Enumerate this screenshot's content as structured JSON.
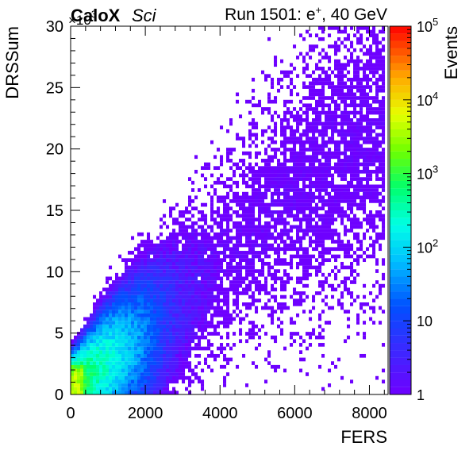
{
  "header": {
    "experiment": "CaloX",
    "tag": "Sci",
    "run_label": "Run 1501: e",
    "run_sup": "+",
    "run_energy": ", 40 GeV",
    "y_multiplier_base": "×10",
    "y_multiplier_exp": "3"
  },
  "chart_data": {
    "type": "heatmap",
    "xlabel": "FERS",
    "ylabel": "DRSSum",
    "zlabel": "Events",
    "xlim": [
      0,
      8500
    ],
    "ylim": [
      0,
      30
    ],
    "y_multiplier": 1000,
    "x_ticks": [
      "0",
      "2000",
      "4000",
      "6000",
      "8000"
    ],
    "x_tick_values": [
      0,
      2000,
      4000,
      6000,
      8000
    ],
    "y_ticks": [
      "0",
      "5",
      "10",
      "15",
      "20",
      "25",
      "30"
    ],
    "y_tick_values": [
      0,
      5,
      10,
      15,
      20,
      25,
      30
    ],
    "z_scale": "log",
    "z_range": [
      1,
      100000
    ],
    "z_ticks": [
      {
        "value": 1,
        "base": "1",
        "exp": ""
      },
      {
        "value": 10,
        "base": "10",
        "exp": ""
      },
      {
        "value": 100,
        "base": "10",
        "exp": "2"
      },
      {
        "value": 1000,
        "base": "10",
        "exp": "3"
      },
      {
        "value": 10000,
        "base": "10",
        "exp": "4"
      },
      {
        "value": 100000,
        "base": "10",
        "exp": "5"
      }
    ],
    "bins_x": 100,
    "bins_y": 100,
    "core": [
      {
        "x": 150,
        "y": 0.6,
        "counts": 2000
      },
      {
        "x": 500,
        "y": 1.5,
        "counts": 600
      },
      {
        "x": 1000,
        "y": 2.6,
        "counts": 250
      },
      {
        "x": 1500,
        "y": 3.5,
        "counts": 90
      },
      {
        "x": 2000,
        "y": 4.6,
        "counts": 30
      },
      {
        "x": 2500,
        "y": 6.0,
        "counts": 8
      },
      {
        "x": 3000,
        "y": 7.5,
        "counts": 3
      },
      {
        "x": 4000,
        "y": 11.0,
        "counts": 1
      },
      {
        "x": 5500,
        "y": 15.0,
        "counts": 1
      },
      {
        "x": 7000,
        "y": 19.0,
        "counts": 1
      },
      {
        "x": 8000,
        "y": 21.0,
        "counts": 1
      }
    ],
    "outliers": [
      {
        "x": 7450,
        "y": 29.0,
        "counts": 1
      },
      {
        "x": 8100,
        "y": 29.6,
        "counts": 1
      },
      {
        "x": 6550,
        "y": 25.3,
        "counts": 1
      },
      {
        "x": 5750,
        "y": 22.5,
        "counts": 1
      },
      {
        "x": 7300,
        "y": 9.1,
        "counts": 1
      },
      {
        "x": 7900,
        "y": 5.9,
        "counts": 1
      },
      {
        "x": 6900,
        "y": 5.9,
        "counts": 1
      }
    ]
  }
}
